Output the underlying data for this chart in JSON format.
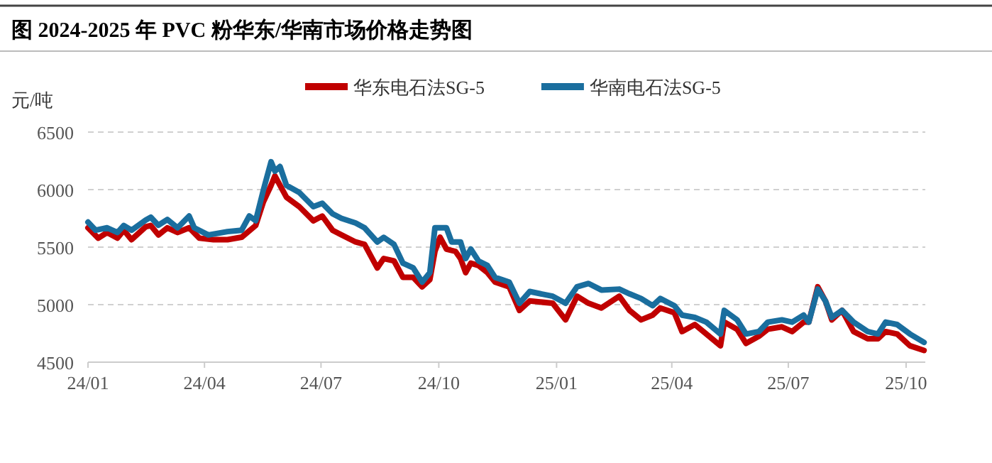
{
  "chart_data": {
    "type": "line",
    "title": "图 2024-2025 年 PVC 粉华东/华南市场价格走势图",
    "ylabel": "元/吨",
    "xlim": [
      "2024-01-01",
      "2025-10-16"
    ],
    "xticks": [
      {
        "value": "2024-01-01",
        "label": "24/01"
      },
      {
        "value": "2024-04-01",
        "label": "24/04"
      },
      {
        "value": "2024-07-01",
        "label": "24/07"
      },
      {
        "value": "2024-10-01",
        "label": "24/10"
      },
      {
        "value": "2025-01-01",
        "label": "25/01"
      },
      {
        "value": "2025-04-01",
        "label": "25/04"
      },
      {
        "value": "2025-07-01",
        "label": "25/07"
      },
      {
        "value": "2025-10-01",
        "label": "25/10"
      }
    ],
    "ylim": [
      4500,
      6500
    ],
    "yticks": [
      4500,
      5000,
      5500,
      6000,
      6500
    ],
    "grid": "y",
    "legend": "top",
    "line_style": "solid",
    "series": [
      {
        "name": "华东电石法SG-5",
        "color": "#c00000",
        "x": [
          "2024-01-01",
          "2024-01-09",
          "2024-01-16",
          "2024-01-24",
          "2024-01-29",
          "2024-02-04",
          "2024-02-15",
          "2024-02-19",
          "2024-02-25",
          "2024-03-03",
          "2024-03-11",
          "2024-03-20",
          "2024-03-28",
          "2024-04-08",
          "2024-04-19",
          "2024-04-30",
          "2024-05-11",
          "2024-05-17",
          "2024-05-23",
          "2024-05-26",
          "2024-05-30",
          "2024-06-04",
          "2024-06-14",
          "2024-06-25",
          "2024-07-02",
          "2024-07-10",
          "2024-07-17",
          "2024-07-28",
          "2024-08-04",
          "2024-08-14",
          "2024-08-19",
          "2024-08-27",
          "2024-09-03",
          "2024-09-11",
          "2024-09-18",
          "2024-09-24",
          "2024-09-28",
          "2024-10-02",
          "2024-10-07",
          "2024-10-14",
          "2024-10-18",
          "2024-10-22",
          "2024-10-26",
          "2024-11-01",
          "2024-11-08",
          "2024-11-14",
          "2024-11-25",
          "2024-12-03",
          "2024-12-11",
          "2024-12-29",
          "2025-01-08",
          "2025-01-17",
          "2025-01-26",
          "2025-02-05",
          "2025-02-19",
          "2025-02-27",
          "2025-03-08",
          "2025-03-17",
          "2025-03-23",
          "2025-04-03",
          "2025-04-09",
          "2025-04-19",
          "2025-04-28",
          "2025-05-09",
          "2025-05-12",
          "2025-05-22",
          "2025-05-29",
          "2025-06-08",
          "2025-06-15",
          "2025-06-26",
          "2025-07-04",
          "2025-07-13",
          "2025-07-17",
          "2025-07-24",
          "2025-07-30",
          "2025-08-04",
          "2025-08-12",
          "2025-08-21",
          "2025-09-01",
          "2025-09-09",
          "2025-09-15",
          "2025-09-24",
          "2025-10-04",
          "2025-10-15"
        ],
        "values": [
          5668,
          5578,
          5627,
          5578,
          5647,
          5565,
          5676,
          5688,
          5606,
          5668,
          5627,
          5668,
          5578,
          5565,
          5565,
          5586,
          5688,
          5893,
          6037,
          6119,
          6037,
          5934,
          5852,
          5729,
          5770,
          5647,
          5606,
          5545,
          5524,
          5319,
          5401,
          5381,
          5237,
          5237,
          5155,
          5217,
          5463,
          5586,
          5483,
          5463,
          5401,
          5278,
          5360,
          5340,
          5278,
          5196,
          5155,
          4950,
          5032,
          5012,
          4868,
          5073,
          5012,
          4971,
          5073,
          4950,
          4868,
          4909,
          4971,
          4930,
          4766,
          4827,
          4745,
          4643,
          4848,
          4786,
          4663,
          4725,
          4786,
          4807,
          4766,
          4848,
          4848,
          5155,
          5032,
          4868,
          4950,
          4766,
          4704,
          4704,
          4766,
          4745,
          4643,
          4602
        ]
      },
      {
        "name": "华南电石法SG-5",
        "color": "#1a6e9e",
        "x": [
          "2024-01-01",
          "2024-01-07",
          "2024-01-16",
          "2024-01-24",
          "2024-01-29",
          "2024-02-04",
          "2024-02-15",
          "2024-02-19",
          "2024-02-25",
          "2024-03-03",
          "2024-03-11",
          "2024-03-20",
          "2024-03-24",
          "2024-04-04",
          "2024-04-19",
          "2024-04-30",
          "2024-05-06",
          "2024-05-11",
          "2024-05-17",
          "2024-05-23",
          "2024-05-26",
          "2024-05-30",
          "2024-06-04",
          "2024-06-14",
          "2024-06-25",
          "2024-07-02",
          "2024-07-10",
          "2024-07-17",
          "2024-07-28",
          "2024-08-04",
          "2024-08-14",
          "2024-08-19",
          "2024-08-27",
          "2024-09-03",
          "2024-09-11",
          "2024-09-18",
          "2024-09-24",
          "2024-09-28",
          "2024-10-07",
          "2024-10-11",
          "2024-10-18",
          "2024-10-22",
          "2024-10-26",
          "2024-11-01",
          "2024-11-08",
          "2024-11-14",
          "2024-11-25",
          "2024-12-03",
          "2024-12-11",
          "2024-12-29",
          "2025-01-08",
          "2025-01-17",
          "2025-01-26",
          "2025-02-05",
          "2025-02-19",
          "2025-02-27",
          "2025-03-08",
          "2025-03-17",
          "2025-03-23",
          "2025-04-03",
          "2025-04-09",
          "2025-04-19",
          "2025-04-28",
          "2025-05-09",
          "2025-05-12",
          "2025-05-22",
          "2025-05-29",
          "2025-06-08",
          "2025-06-15",
          "2025-06-26",
          "2025-07-04",
          "2025-07-13",
          "2025-07-17",
          "2025-07-24",
          "2025-07-30",
          "2025-08-04",
          "2025-08-12",
          "2025-08-21",
          "2025-09-01",
          "2025-09-09",
          "2025-09-15",
          "2025-09-24",
          "2025-10-04",
          "2025-10-15"
        ],
        "values": [
          5717,
          5647,
          5668,
          5627,
          5688,
          5647,
          5735,
          5760,
          5690,
          5740,
          5668,
          5770,
          5668,
          5606,
          5635,
          5647,
          5770,
          5730,
          5996,
          6242,
          6160,
          6200,
          6037,
          5975,
          5852,
          5881,
          5790,
          5750,
          5710,
          5668,
          5545,
          5585,
          5524,
          5360,
          5320,
          5196,
          5278,
          5668,
          5668,
          5545,
          5545,
          5401,
          5483,
          5380,
          5340,
          5237,
          5196,
          5012,
          5114,
          5073,
          5012,
          5155,
          5184,
          5127,
          5135,
          5094,
          5053,
          4991,
          5053,
          4991,
          4909,
          4889,
          4848,
          4745,
          4950,
          4868,
          4745,
          4766,
          4848,
          4868,
          4848,
          4909,
          4848,
          5135,
          5032,
          4889,
          4950,
          4848,
          4766,
          4745,
          4848,
          4827,
          4745,
          4672
        ]
      }
    ]
  }
}
